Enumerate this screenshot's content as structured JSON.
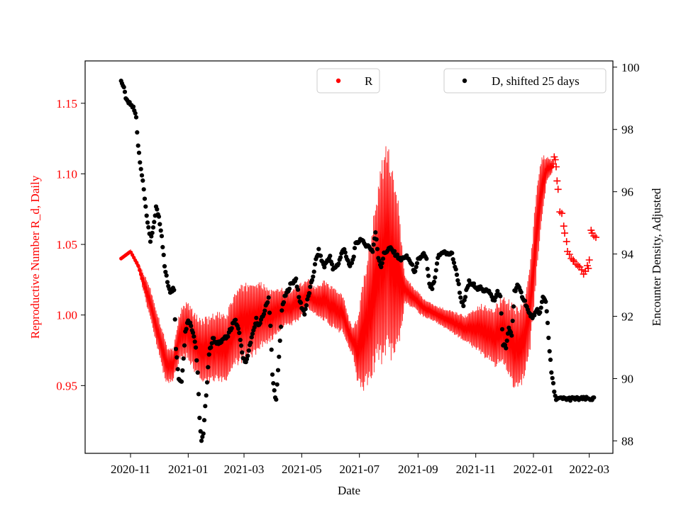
{
  "chart_data": {
    "type": "scatter",
    "xlabel": "Date",
    "ylabel_left": "Reproductive Number R_d, Daily",
    "ylabel_right": "Encounter Density, Adjusted",
    "colors": {
      "r": "#ff0000",
      "d": "#000000",
      "frame": "#000000"
    },
    "x_ticks": [
      "2020-11",
      "2021-01",
      "2021-03",
      "2021-05",
      "2021-07",
      "2021-09",
      "2021-11",
      "2022-01",
      "2022-03"
    ],
    "x_tick_days": [
      10,
      71,
      130,
      191,
      252,
      314,
      375,
      436,
      495
    ],
    "xlim_days": [
      -38,
      520
    ],
    "x_origin_date": "2020-10-22",
    "ylim_left": [
      0.902,
      1.18
    ],
    "yticks_left": [
      0.95,
      1.0,
      1.05,
      1.1,
      1.15
    ],
    "ytick_labels_left": [
      "0.95",
      "1.00",
      "1.05",
      "1.10",
      "1.15"
    ],
    "ylim_right": [
      87.6,
      100.2
    ],
    "yticks_right": [
      88,
      90,
      92,
      94,
      96,
      98,
      100
    ],
    "ytick_labels_right": [
      "88",
      "90",
      "92",
      "94",
      "96",
      "98",
      "100"
    ],
    "legend": {
      "r_label": "R",
      "d_label": "D, shifted 25 days"
    },
    "series_r": {
      "name": "R",
      "marker": "dot",
      "center_knots": [
        [
          0,
          1.04
        ],
        [
          10,
          1.045
        ],
        [
          18,
          1.035
        ],
        [
          30,
          1.01
        ],
        [
          40,
          0.985
        ],
        [
          48,
          0.965
        ],
        [
          55,
          0.965
        ],
        [
          62,
          0.985
        ],
        [
          70,
          0.99
        ],
        [
          78,
          0.98
        ],
        [
          86,
          0.975
        ],
        [
          94,
          0.975
        ],
        [
          102,
          0.978
        ],
        [
          110,
          0.975
        ],
        [
          120,
          0.99
        ],
        [
          130,
          0.995
        ],
        [
          140,
          0.997
        ],
        [
          150,
          1.0
        ],
        [
          160,
          1.0
        ],
        [
          170,
          1.005
        ],
        [
          180,
          1.005
        ],
        [
          190,
          1.01
        ],
        [
          198,
          1.015
        ],
        [
          205,
          1.01
        ],
        [
          215,
          1.01
        ],
        [
          225,
          1.005
        ],
        [
          235,
          1.0
        ],
        [
          242,
          0.985
        ],
        [
          250,
          0.975
        ],
        [
          256,
          0.985
        ],
        [
          262,
          1.0
        ],
        [
          268,
          1.02
        ],
        [
          274,
          1.035
        ],
        [
          280,
          1.045
        ],
        [
          286,
          1.04
        ],
        [
          292,
          1.03
        ],
        [
          298,
          1.02
        ],
        [
          305,
          1.015
        ],
        [
          320,
          1.005
        ],
        [
          335,
          1.0
        ],
        [
          350,
          0.995
        ],
        [
          365,
          0.99
        ],
        [
          380,
          0.99
        ],
        [
          395,
          0.985
        ],
        [
          405,
          0.99
        ],
        [
          412,
          0.98
        ],
        [
          420,
          0.975
        ],
        [
          427,
          0.985
        ],
        [
          432,
          1.005
        ],
        [
          436,
          1.03
        ],
        [
          440,
          1.065
        ],
        [
          445,
          1.09
        ],
        [
          450,
          1.103
        ],
        [
          455,
          1.105
        ]
      ],
      "amp_knots": [
        [
          0,
          0
        ],
        [
          18,
          0.003
        ],
        [
          30,
          0.012
        ],
        [
          45,
          0.015
        ],
        [
          55,
          0.012
        ],
        [
          65,
          0.02
        ],
        [
          80,
          0.022
        ],
        [
          95,
          0.025
        ],
        [
          110,
          0.025
        ],
        [
          125,
          0.028
        ],
        [
          140,
          0.028
        ],
        [
          160,
          0.018
        ],
        [
          175,
          0.013
        ],
        [
          190,
          0.013
        ],
        [
          205,
          0.01
        ],
        [
          215,
          0.015
        ],
        [
          230,
          0.015
        ],
        [
          245,
          0.01
        ],
        [
          256,
          0.04
        ],
        [
          268,
          0.06
        ],
        [
          277,
          0.075
        ],
        [
          285,
          0.075
        ],
        [
          292,
          0.06
        ],
        [
          300,
          0.01
        ],
        [
          310,
          0.008
        ],
        [
          330,
          0.006
        ],
        [
          350,
          0.008
        ],
        [
          365,
          0.01
        ],
        [
          380,
          0.018
        ],
        [
          395,
          0.022
        ],
        [
          405,
          0.025
        ],
        [
          415,
          0.032
        ],
        [
          422,
          0.03
        ],
        [
          428,
          0.03
        ],
        [
          436,
          0.035
        ],
        [
          442,
          0.032
        ],
        [
          450,
          0.01
        ],
        [
          455,
          0.005
        ]
      ],
      "day_range": [
        0,
        456
      ]
    },
    "series_r_plus": {
      "marker": "plus",
      "points": [
        [
          457,
          1.107
        ],
        [
          458,
          1.112
        ],
        [
          459,
          1.11
        ],
        [
          460,
          1.105
        ],
        [
          461,
          1.095
        ],
        [
          462,
          1.089
        ],
        [
          464,
          1.073
        ],
        [
          466,
          1.072
        ],
        [
          468,
          1.063
        ],
        [
          469,
          1.058
        ],
        [
          471,
          1.052
        ],
        [
          472,
          1.045
        ],
        [
          474,
          1.043
        ],
        [
          476,
          1.04
        ],
        [
          478,
          1.039
        ],
        [
          479,
          1.038
        ],
        [
          481,
          1.036
        ],
        [
          483,
          1.035
        ],
        [
          485,
          1.034
        ],
        [
          487,
          1.032
        ],
        [
          489,
          1.029
        ],
        [
          491,
          1.031
        ],
        [
          493,
          1.035
        ],
        [
          494,
          1.033
        ],
        [
          495,
          1.039
        ],
        [
          497,
          1.06
        ],
        [
          498,
          1.058
        ],
        [
          500,
          1.056
        ],
        [
          502,
          1.055
        ]
      ]
    },
    "series_d": {
      "name": "D, shifted 25 days",
      "marker": "dot",
      "knots": [
        [
          0,
          99.6
        ],
        [
          3,
          99.3
        ],
        [
          6,
          98.9
        ],
        [
          10,
          98.8
        ],
        [
          13,
          98.7
        ],
        [
          16,
          98.4
        ],
        [
          18,
          97.5
        ],
        [
          20,
          97.0
        ],
        [
          23,
          96.3
        ],
        [
          25,
          95.8
        ],
        [
          28,
          95.0
        ],
        [
          31,
          94.4
        ],
        [
          34,
          94.8
        ],
        [
          37,
          95.5
        ],
        [
          40,
          95.2
        ],
        [
          43,
          94.6
        ],
        [
          46,
          93.6
        ],
        [
          49,
          93.1
        ],
        [
          52,
          92.8
        ],
        [
          56,
          92.9
        ],
        [
          58,
          91.0
        ],
        [
          61,
          90.0
        ],
        [
          64,
          89.9
        ],
        [
          68,
          91.5
        ],
        [
          71,
          91.9
        ],
        [
          74,
          91.7
        ],
        [
          77,
          91.4
        ],
        [
          79,
          91.0
        ],
        [
          81,
          90.2
        ],
        [
          83,
          88.7
        ],
        [
          85,
          88.0
        ],
        [
          87,
          88.2
        ],
        [
          90,
          89.5
        ],
        [
          93,
          90.8
        ],
        [
          97,
          91.3
        ],
        [
          101,
          91.1
        ],
        [
          105,
          91.2
        ],
        [
          109,
          91.3
        ],
        [
          112,
          91.3
        ],
        [
          116,
          91.6
        ],
        [
          120,
          91.9
        ],
        [
          123,
          91.7
        ],
        [
          126,
          91.3
        ],
        [
          128,
          90.8
        ],
        [
          131,
          90.5
        ],
        [
          134,
          90.7
        ],
        [
          137,
          91.2
        ],
        [
          140,
          91.5
        ],
        [
          143,
          91.9
        ],
        [
          146,
          91.7
        ],
        [
          150,
          92.0
        ],
        [
          153,
          92.3
        ],
        [
          156,
          92.6
        ],
        [
          158,
          91.7
        ],
        [
          160,
          90.1
        ],
        [
          162,
          89.6
        ],
        [
          164,
          89.3
        ],
        [
          167,
          90.7
        ],
        [
          170,
          92.2
        ],
        [
          173,
          92.6
        ],
        [
          176,
          92.8
        ],
        [
          179,
          93.0
        ],
        [
          182,
          93.1
        ],
        [
          185,
          93.2
        ],
        [
          188,
          92.6
        ],
        [
          191,
          92.3
        ],
        [
          194,
          92.1
        ],
        [
          197,
          92.5
        ],
        [
          200,
          92.9
        ],
        [
          203,
          93.3
        ],
        [
          206,
          93.8
        ],
        [
          209,
          94.1
        ],
        [
          212,
          93.8
        ],
        [
          215,
          93.6
        ],
        [
          218,
          93.8
        ],
        [
          221,
          93.9
        ],
        [
          224,
          93.5
        ],
        [
          227,
          93.6
        ],
        [
          230,
          93.7
        ],
        [
          233,
          94.0
        ],
        [
          236,
          94.2
        ],
        [
          239,
          93.8
        ],
        [
          242,
          93.6
        ],
        [
          245,
          93.8
        ],
        [
          248,
          94.3
        ],
        [
          251,
          94.4
        ],
        [
          254,
          94.5
        ],
        [
          257,
          94.3
        ],
        [
          260,
          94.3
        ],
        [
          263,
          94.2
        ],
        [
          266,
          94.1
        ],
        [
          269,
          94.7
        ],
        [
          272,
          93.9
        ],
        [
          275,
          93.6
        ],
        [
          278,
          94.0
        ],
        [
          281,
          94.1
        ],
        [
          284,
          94.2
        ],
        [
          287,
          94.1
        ],
        [
          290,
          94.0
        ],
        [
          293,
          93.9
        ],
        [
          296,
          93.8
        ],
        [
          299,
          93.9
        ],
        [
          302,
          93.9
        ],
        [
          305,
          93.8
        ],
        [
          308,
          93.6
        ],
        [
          311,
          93.4
        ],
        [
          314,
          93.8
        ],
        [
          317,
          93.9
        ],
        [
          320,
          94.0
        ],
        [
          323,
          93.8
        ],
        [
          326,
          93.0
        ],
        [
          329,
          92.9
        ],
        [
          332,
          93.2
        ],
        [
          335,
          93.9
        ],
        [
          338,
          94.0
        ],
        [
          341,
          94.1
        ],
        [
          344,
          94.0
        ],
        [
          347,
          94.0
        ],
        [
          350,
          94.0
        ],
        [
          353,
          93.6
        ],
        [
          356,
          93.2
        ],
        [
          359,
          92.6
        ],
        [
          362,
          92.3
        ],
        [
          365,
          92.8
        ],
        [
          368,
          93.1
        ],
        [
          371,
          93.0
        ],
        [
          374,
          93.0
        ],
        [
          377,
          92.9
        ],
        [
          380,
          92.9
        ],
        [
          383,
          92.8
        ],
        [
          386,
          92.9
        ],
        [
          389,
          92.8
        ],
        [
          392,
          92.6
        ],
        [
          395,
          92.5
        ],
        [
          398,
          92.8
        ],
        [
          401,
          92.6
        ],
        [
          404,
          91.1
        ],
        [
          407,
          91.0
        ],
        [
          410,
          91.6
        ],
        [
          413,
          91.4
        ],
        [
          416,
          92.8
        ],
        [
          419,
          93.0
        ],
        [
          422,
          92.8
        ],
        [
          425,
          92.6
        ],
        [
          428,
          92.4
        ],
        [
          431,
          92.1
        ],
        [
          434,
          92.0
        ],
        [
          437,
          92.0
        ],
        [
          440,
          92.2
        ],
        [
          443,
          92.1
        ],
        [
          446,
          92.6
        ],
        [
          449,
          92.5
        ],
        [
          451,
          91.8
        ],
        [
          453,
          90.9
        ],
        [
          455,
          90.2
        ],
        [
          457,
          89.8
        ],
        [
          459,
          89.4
        ],
        [
          461,
          89.35
        ],
        [
          500,
          89.35
        ]
      ],
      "day_range": [
        0,
        500
      ]
    }
  }
}
